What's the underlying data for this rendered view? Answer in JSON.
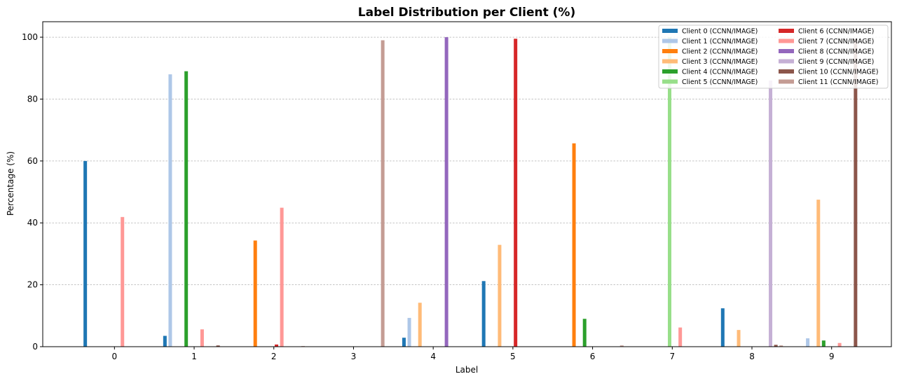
{
  "chart_data": {
    "type": "bar",
    "title": "Label Distribution per Client (%)",
    "xlabel": "Label",
    "ylabel": "Percentage (%)",
    "categories": [
      "0",
      "1",
      "2",
      "3",
      "4",
      "5",
      "6",
      "7",
      "8",
      "9"
    ],
    "ylim": [
      0,
      105
    ],
    "yticks": [
      0,
      20,
      40,
      60,
      80,
      100
    ],
    "grid": "y-dashed",
    "legend_position": "top-right",
    "legend_columns": 2,
    "series": [
      {
        "name": "Client 0 (CCNN/IMAGE)",
        "color": "#1f77b4",
        "values": [
          60,
          3.5,
          0,
          0,
          2.9,
          21.2,
          0,
          0,
          12.4,
          0
        ]
      },
      {
        "name": "Client 1 (CCNN/IMAGE)",
        "color": "#aec7e8",
        "values": [
          0,
          88,
          0,
          0,
          9.3,
          0,
          0,
          0,
          0,
          2.7
        ]
      },
      {
        "name": "Client 2 (CCNN/IMAGE)",
        "color": "#ff7f0e",
        "values": [
          0,
          0,
          34.3,
          0,
          0,
          0,
          65.7,
          0,
          0,
          0
        ]
      },
      {
        "name": "Client 3 (CCNN/IMAGE)",
        "color": "#ffbb78",
        "values": [
          0,
          0,
          0,
          0,
          14.2,
          32.9,
          0,
          0,
          5.4,
          47.5
        ]
      },
      {
        "name": "Client 4 (CCNN/IMAGE)",
        "color": "#2ca02c",
        "values": [
          0,
          89,
          0,
          0,
          0,
          0,
          9,
          0,
          0,
          2
        ]
      },
      {
        "name": "Client 5 (CCNN/IMAGE)",
        "color": "#98df8a",
        "values": [
          0,
          0,
          0,
          0,
          0,
          0,
          0,
          100,
          0,
          0
        ]
      },
      {
        "name": "Client 6 (CCNN/IMAGE)",
        "color": "#d62728",
        "values": [
          0,
          0,
          0.7,
          0,
          0,
          99.5,
          0,
          0,
          0,
          0
        ]
      },
      {
        "name": "Client 7 (CCNN/IMAGE)",
        "color": "#ff9896",
        "values": [
          41.9,
          5.6,
          44.9,
          0,
          0,
          0,
          0,
          6.2,
          0,
          1.2
        ]
      },
      {
        "name": "Client 8 (CCNN/IMAGE)",
        "color": "#9467bd",
        "values": [
          0,
          0,
          0,
          0,
          100,
          0,
          0,
          0,
          0,
          0
        ]
      },
      {
        "name": "Client 9 (CCNN/IMAGE)",
        "color": "#c5b0d5",
        "values": [
          0,
          0,
          0,
          0,
          0,
          0,
          0,
          0,
          86,
          0
        ]
      },
      {
        "name": "Client 10 (CCNN/IMAGE)",
        "color": "#8c564b",
        "values": [
          0,
          0.4,
          0,
          0,
          0,
          0,
          0,
          0,
          0.6,
          99.5
        ]
      },
      {
        "name": "Client 11 (CCNN/IMAGE)",
        "color": "#c49c94",
        "values": [
          0,
          0,
          0.2,
          99,
          0.1,
          0,
          0.4,
          0,
          0.4,
          0
        ]
      }
    ]
  }
}
